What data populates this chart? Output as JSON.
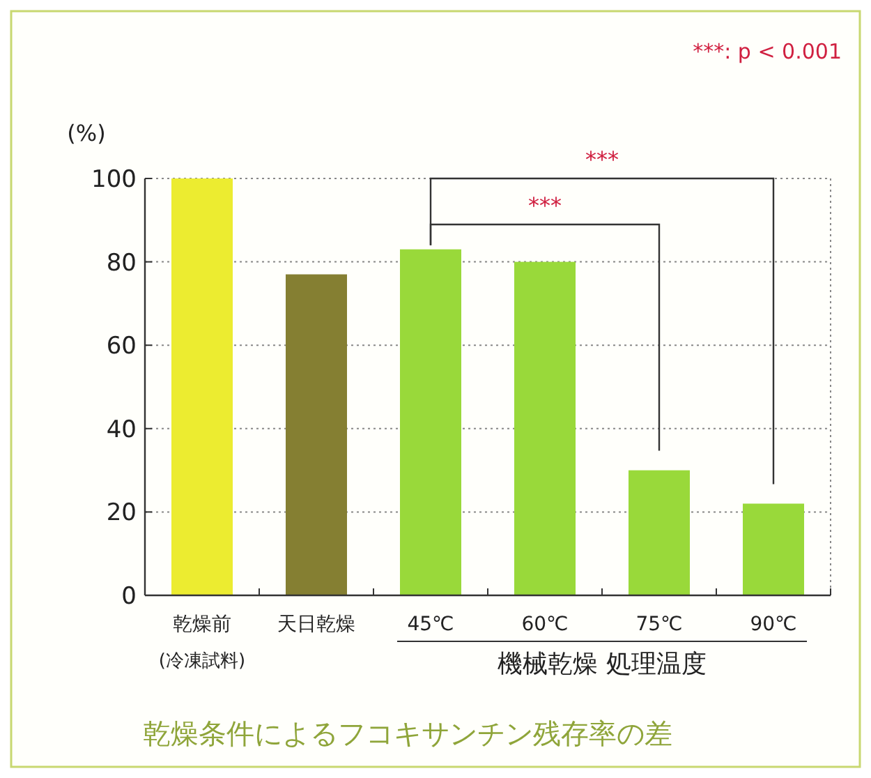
{
  "chart_data": {
    "type": "bar",
    "title": "乾燥条件によるフコキサンチン残存率の差",
    "ylabel": "(%)",
    "xlabel": "機械乾燥 処理温度",
    "categories": [
      "乾燥前\n(冷凍試料)",
      "天日乾燥",
      "45℃",
      "60℃",
      "75℃",
      "90℃"
    ],
    "values": [
      100,
      77,
      83,
      80,
      30,
      22
    ],
    "colors": [
      "#ecec30",
      "#857f32",
      "#99d93a",
      "#99d93a",
      "#99d93a",
      "#99d93a"
    ],
    "ylim": [
      0,
      100
    ],
    "yticks": [
      0,
      20,
      40,
      60,
      80,
      100
    ],
    "grid": "y",
    "annotations": [
      "***: p < 0.001",
      "***",
      "***"
    ]
  }
}
